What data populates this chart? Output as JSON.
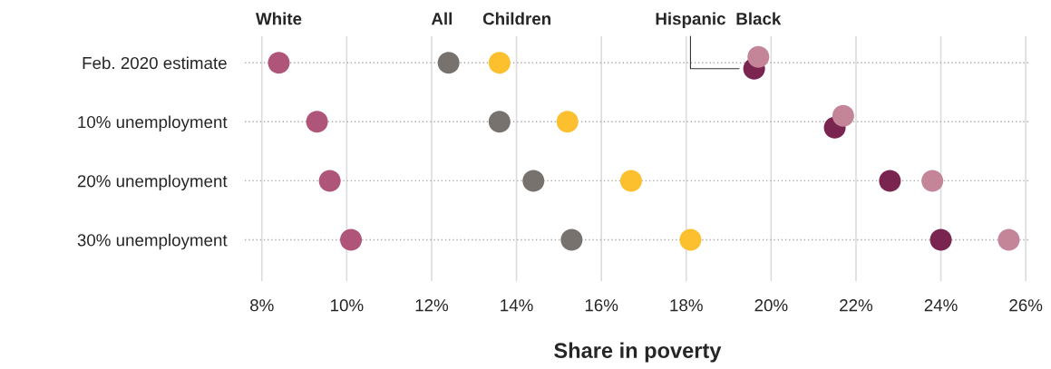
{
  "chart_data": {
    "type": "scatter",
    "orientation": "horizontal",
    "xlabel": "Share in poverty",
    "categories": [
      "Feb. 2020 estimate",
      "10% unemployment",
      "20% unemployment",
      "30% unemployment"
    ],
    "series": [
      {
        "name": "White",
        "color": "#b0557a",
        "values": [
          8.4,
          9.3,
          9.6,
          10.1
        ]
      },
      {
        "name": "All",
        "color": "#77726d",
        "values": [
          12.4,
          13.6,
          14.4,
          15.3
        ]
      },
      {
        "name": "Children",
        "color": "#fcbf2d",
        "values": [
          13.6,
          15.2,
          16.7,
          18.1
        ]
      },
      {
        "name": "Hispanic",
        "color": "#7a2450",
        "values": [
          19.6,
          21.5,
          22.8,
          24.0
        ]
      },
      {
        "name": "Black",
        "color": "#c48599",
        "values": [
          19.7,
          21.7,
          23.8,
          25.6
        ]
      }
    ],
    "xlim": [
      7.6,
      26.1
    ],
    "xticks": [
      {
        "value": 8,
        "label": "8%"
      },
      {
        "value": 10,
        "label": "10%"
      },
      {
        "value": 12,
        "label": "12%"
      },
      {
        "value": 14,
        "label": "14%"
      },
      {
        "value": 16,
        "label": "16%"
      },
      {
        "value": 18,
        "label": "18%"
      },
      {
        "value": 20,
        "label": "20%"
      },
      {
        "value": 22,
        "label": "22%"
      },
      {
        "value": 24,
        "label": "24%"
      },
      {
        "value": 26,
        "label": "26%"
      }
    ],
    "grid": true,
    "marker": "circle"
  }
}
